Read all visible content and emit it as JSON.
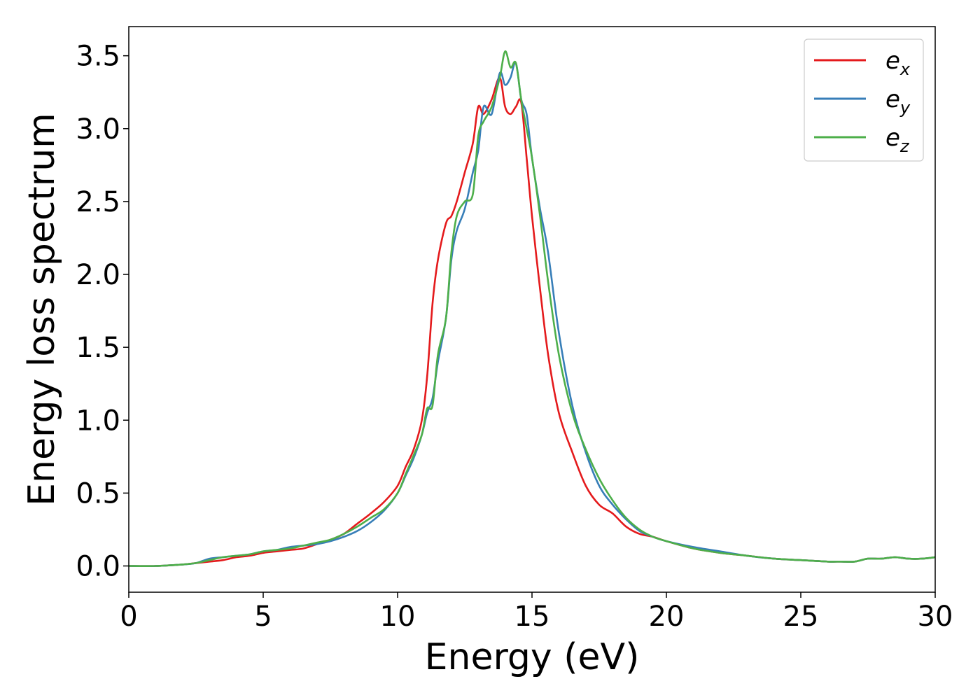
{
  "chart_data": {
    "type": "line",
    "title": "",
    "xlabel": "Energy (eV)",
    "ylabel": "Energy loss spectrum",
    "xlim": [
      0,
      30
    ],
    "ylim": [
      -0.18,
      3.7
    ],
    "xticks": [
      0,
      5,
      10,
      15,
      20,
      25,
      30
    ],
    "xtick_labels": [
      "0",
      "5",
      "10",
      "15",
      "20",
      "25",
      "30"
    ],
    "yticks": [
      0.0,
      0.5,
      1.0,
      1.5,
      2.0,
      2.5,
      3.0,
      3.5
    ],
    "ytick_labels": [
      "0.0",
      "0.5",
      "1.0",
      "1.5",
      "2.0",
      "2.5",
      "3.0",
      "3.5"
    ],
    "grid": false,
    "legend_position": "top-right",
    "series": [
      {
        "name": "e",
        "subscript": "x",
        "color": "#e41a1c",
        "x": [
          0,
          1,
          2,
          2.5,
          3,
          3.5,
          4,
          4.5,
          5,
          5.5,
          6,
          6.5,
          7,
          7.5,
          8,
          8.5,
          9,
          9.5,
          10,
          10.3,
          10.6,
          10.9,
          11.1,
          11.3,
          11.5,
          11.8,
          12.0,
          12.2,
          12.5,
          12.8,
          13.0,
          13.2,
          13.5,
          13.8,
          14.0,
          14.2,
          14.4,
          14.6,
          14.8,
          15.0,
          15.3,
          15.6,
          16.0,
          16.5,
          17.0,
          17.5,
          18.0,
          18.5,
          19.0,
          19.5,
          20.0,
          21,
          22,
          23,
          24,
          25,
          26,
          26.5,
          27,
          27.5,
          28,
          28.5,
          29,
          29.5,
          30
        ],
        "values": [
          0.0,
          0.0,
          0.01,
          0.02,
          0.03,
          0.04,
          0.06,
          0.07,
          0.09,
          0.1,
          0.11,
          0.12,
          0.15,
          0.18,
          0.22,
          0.29,
          0.36,
          0.44,
          0.55,
          0.68,
          0.8,
          1.0,
          1.3,
          1.8,
          2.1,
          2.35,
          2.4,
          2.5,
          2.7,
          2.9,
          3.15,
          3.1,
          3.2,
          3.35,
          3.15,
          3.1,
          3.15,
          3.18,
          2.8,
          2.4,
          1.9,
          1.45,
          1.05,
          0.78,
          0.55,
          0.42,
          0.36,
          0.27,
          0.22,
          0.2,
          0.17,
          0.12,
          0.09,
          0.07,
          0.05,
          0.04,
          0.03,
          0.03,
          0.03,
          0.05,
          0.05,
          0.06,
          0.05,
          0.05,
          0.06
        ]
      },
      {
        "name": "e",
        "subscript": "y",
        "color": "#377eb8",
        "x": [
          0,
          1,
          2,
          2.5,
          3,
          3.5,
          4,
          4.5,
          5,
          5.5,
          6,
          6.5,
          7,
          7.5,
          8,
          8.5,
          9,
          9.5,
          10,
          10.3,
          10.6,
          10.9,
          11.1,
          11.3,
          11.5,
          11.8,
          12.0,
          12.2,
          12.5,
          12.8,
          13.0,
          13.2,
          13.5,
          13.8,
          14.0,
          14.2,
          14.4,
          14.6,
          14.8,
          15.0,
          15.3,
          15.6,
          16.0,
          16.5,
          17.0,
          17.5,
          18.0,
          18.5,
          19.0,
          19.5,
          20.0,
          21,
          22,
          23,
          24,
          25,
          26,
          26.5,
          27,
          27.5,
          28,
          28.5,
          29,
          29.5,
          30
        ],
        "values": [
          0.0,
          0.0,
          0.01,
          0.02,
          0.05,
          0.06,
          0.07,
          0.08,
          0.1,
          0.11,
          0.13,
          0.14,
          0.15,
          0.17,
          0.2,
          0.24,
          0.3,
          0.38,
          0.5,
          0.62,
          0.74,
          0.9,
          1.05,
          1.15,
          1.4,
          1.7,
          2.1,
          2.3,
          2.45,
          2.7,
          2.85,
          3.15,
          3.1,
          3.38,
          3.3,
          3.35,
          3.45,
          3.2,
          3.1,
          2.8,
          2.45,
          2.15,
          1.6,
          1.1,
          0.78,
          0.55,
          0.42,
          0.32,
          0.24,
          0.2,
          0.17,
          0.13,
          0.1,
          0.07,
          0.05,
          0.04,
          0.03,
          0.03,
          0.03,
          0.05,
          0.05,
          0.06,
          0.05,
          0.05,
          0.06
        ]
      },
      {
        "name": "e",
        "subscript": "z",
        "color": "#4daf4a",
        "x": [
          0,
          1,
          2,
          2.5,
          3,
          3.5,
          4,
          4.5,
          5,
          5.5,
          6,
          6.5,
          7,
          7.5,
          8,
          8.5,
          9,
          9.5,
          10,
          10.3,
          10.6,
          10.9,
          11.1,
          11.3,
          11.5,
          11.8,
          12.0,
          12.2,
          12.5,
          12.8,
          13.0,
          13.2,
          13.5,
          13.8,
          14.0,
          14.2,
          14.4,
          14.6,
          14.8,
          15.0,
          15.3,
          15.6,
          16.0,
          16.5,
          17.0,
          17.5,
          18.0,
          18.5,
          19.0,
          19.5,
          20.0,
          21,
          22,
          23,
          24,
          25,
          26,
          26.5,
          27,
          27.5,
          28,
          28.5,
          29,
          29.5,
          30
        ],
        "values": [
          0.0,
          0.0,
          0.01,
          0.02,
          0.04,
          0.06,
          0.07,
          0.08,
          0.1,
          0.11,
          0.12,
          0.14,
          0.16,
          0.18,
          0.22,
          0.27,
          0.33,
          0.39,
          0.5,
          0.63,
          0.76,
          0.9,
          1.08,
          1.1,
          1.45,
          1.7,
          2.15,
          2.4,
          2.5,
          2.55,
          2.95,
          3.05,
          3.15,
          3.35,
          3.53,
          3.42,
          3.45,
          3.2,
          3.0,
          2.8,
          2.4,
          1.95,
          1.45,
          1.05,
          0.8,
          0.6,
          0.45,
          0.33,
          0.25,
          0.2,
          0.17,
          0.12,
          0.09,
          0.07,
          0.05,
          0.04,
          0.03,
          0.03,
          0.03,
          0.05,
          0.05,
          0.06,
          0.05,
          0.05,
          0.06
        ]
      }
    ]
  }
}
